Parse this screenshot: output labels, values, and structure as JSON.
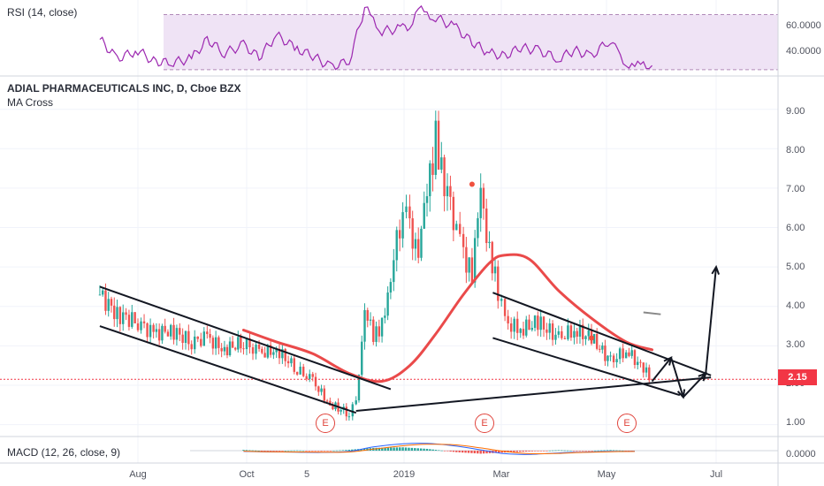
{
  "chart_data": [
    {
      "type": "line",
      "title": "RSI (14, close)",
      "y_ticks": [
        "60.0000",
        "40.0000"
      ],
      "ylim": [
        28,
        78
      ],
      "band": [
        30,
        70
      ],
      "levels": [
        70,
        30
      ],
      "colors": {
        "line": "#9c27b0",
        "band": "#efe3f5",
        "levels": "#b08ab8"
      },
      "x": [
        "2018-07-10",
        "2018-07-20",
        "2018-08-01",
        "2018-08-10",
        "2018-08-20",
        "2018-09-01",
        "2018-09-10",
        "2018-09-20",
        "2018-10-01",
        "2018-10-10",
        "2018-10-20",
        "2018-11-01",
        "2018-11-10",
        "2018-11-20",
        "2018-12-01",
        "2018-12-10",
        "2018-12-15",
        "2018-12-20",
        "2019-01-01",
        "2019-01-05",
        "2019-01-10",
        "2019-01-15",
        "2019-01-20",
        "2019-02-01",
        "2019-02-10",
        "2019-02-20",
        "2019-03-01",
        "2019-03-10",
        "2019-03-20",
        "2019-04-01",
        "2019-04-10",
        "2019-04-20",
        "2019-05-01",
        "2019-05-05",
        "2019-05-10",
        "2019-05-15",
        "2019-05-20",
        "2019-05-25"
      ],
      "values": [
        52,
        38,
        44,
        36,
        35,
        38,
        52,
        42,
        48,
        39,
        55,
        45,
        40,
        32,
        36,
        75,
        66,
        58,
        60,
        62,
        74,
        70,
        68,
        60,
        50,
        42,
        40,
        46,
        44,
        38,
        44,
        40,
        52,
        42,
        35,
        32,
        34,
        33
      ]
    },
    {
      "type": "candlestick",
      "title": "ADIAL PHARMACEUTICALS INC, D, Cboe BZX",
      "indicator": "MA Cross",
      "ylim": [
        0.7,
        9.8
      ],
      "y_ticks": [
        "9.00",
        "8.00",
        "7.00",
        "6.00",
        "5.00",
        "4.00",
        "3.00",
        "2.00",
        "1.00"
      ],
      "x_ticks": [
        "Aug",
        "Oct",
        "5",
        "2019",
        "Mar",
        "May",
        "Jul"
      ],
      "last_price": "2.15",
      "colors": {
        "up": "#26a69a",
        "down": "#ef5350",
        "ma": "#ea4a4a",
        "annotation": "#131722",
        "price_line": "#f23645"
      },
      "events": [
        "E",
        "E",
        "E"
      ],
      "x": [
        "2018-07-10",
        "2018-07-20",
        "2018-08-01",
        "2018-08-10",
        "2018-08-20",
        "2018-09-01",
        "2018-09-10",
        "2018-09-20",
        "2018-10-01",
        "2018-10-10",
        "2018-10-20",
        "2018-11-01",
        "2018-11-10",
        "2018-11-20",
        "2018-12-01",
        "2018-12-05",
        "2018-12-10",
        "2018-12-15",
        "2018-12-20",
        "2018-12-25",
        "2019-01-01",
        "2019-01-05",
        "2019-01-10",
        "2019-01-15",
        "2019-01-20",
        "2019-01-25",
        "2019-02-01",
        "2019-02-05",
        "2019-02-10",
        "2019-02-15",
        "2019-02-20",
        "2019-02-25",
        "2019-03-01",
        "2019-03-10",
        "2019-03-20",
        "2019-04-01",
        "2019-04-10",
        "2019-04-20",
        "2019-05-01",
        "2019-05-10",
        "2019-05-20",
        "2019-05-25"
      ],
      "values": [
        4.3,
        3.8,
        3.6,
        3.3,
        3.4,
        3.1,
        3.2,
        2.9,
        3.1,
        2.8,
        2.9,
        2.4,
        2.1,
        1.5,
        1.3,
        1.5,
        4.0,
        3.2,
        3.5,
        4.8,
        6.5,
        5.9,
        5.5,
        6.8,
        8.3,
        7.2,
        6.0,
        5.3,
        4.9,
        6.8,
        5.5,
        4.4,
        3.6,
        3.4,
        3.6,
        3.2,
        3.4,
        3.2,
        2.6,
        2.9,
        2.4,
        2.15
      ],
      "ma_x": [
        "2018-10-01",
        "2018-10-20",
        "2018-11-10",
        "2018-12-01",
        "2018-12-20",
        "2019-01-05",
        "2019-01-20",
        "2019-02-05",
        "2019-02-20",
        "2019-03-01",
        "2019-03-15",
        "2019-04-01",
        "2019-04-20",
        "2019-05-10",
        "2019-05-25"
      ],
      "ma_values": [
        3.4,
        3.1,
        2.8,
        2.3,
        2.1,
        2.5,
        3.3,
        4.3,
        5.1,
        5.3,
        5.2,
        4.4,
        3.7,
        3.1,
        2.9
      ],
      "projection_x": [
        "2019-05-25",
        "2019-06-05",
        "2019-06-12",
        "2019-06-25",
        "2019-07-01"
      ],
      "projection_y": [
        2.1,
        2.7,
        1.7,
        2.3,
        5.0
      ]
    },
    {
      "type": "bar",
      "title": "MACD (12, 26, close, 9)",
      "y_ticks": [
        "0.0000"
      ],
      "ylim": [
        -0.7,
        0.7
      ],
      "colors": {
        "pos": "#26a69a",
        "neg": "#ef5350",
        "macd": "#2962ff",
        "signal": "#ff6d00"
      },
      "x": [
        "2018-10-01",
        "2018-10-15",
        "2018-11-01",
        "2018-11-15",
        "2018-12-01",
        "2018-12-15",
        "2019-01-01",
        "2019-01-15",
        "2019-02-01",
        "2019-02-15",
        "2019-03-01",
        "2019-03-15",
        "2019-04-01",
        "2019-04-15",
        "2019-05-01",
        "2019-05-15"
      ],
      "values": [
        0.05,
        -0.03,
        0.02,
        -0.04,
        0.06,
        0.18,
        0.22,
        0.12,
        -0.1,
        -0.2,
        -0.12,
        -0.05,
        0.03,
        -0.02,
        0.04,
        -0.03
      ],
      "macd": [
        -0.05,
        -0.08,
        -0.1,
        -0.12,
        -0.05,
        0.25,
        0.45,
        0.48,
        0.3,
        0.05,
        -0.2,
        -0.25,
        -0.15,
        -0.1,
        -0.05,
        -0.04
      ],
      "signal": [
        -0.04,
        -0.07,
        -0.09,
        -0.1,
        -0.09,
        0.1,
        0.32,
        0.42,
        0.38,
        0.18,
        -0.05,
        -0.2,
        -0.18,
        -0.12,
        -0.07,
        -0.05
      ]
    }
  ]
}
